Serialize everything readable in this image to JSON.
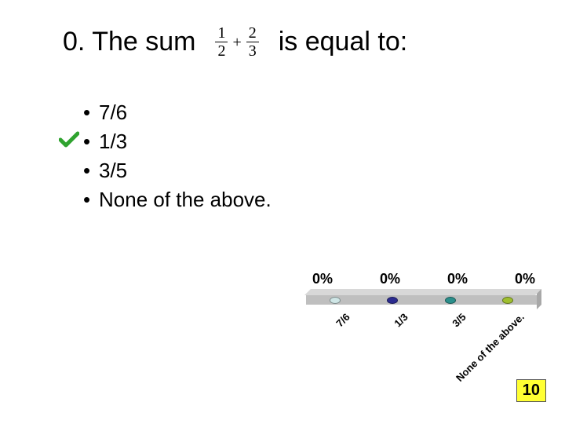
{
  "title": {
    "before": "0. The sum",
    "after": "is equal to:",
    "frac1_num": "1",
    "frac1_den": "2",
    "plus": "+",
    "frac2_num": "2",
    "frac2_den": "3"
  },
  "options": {
    "bullet": "•",
    "items": [
      {
        "text": "7/6",
        "correct": false
      },
      {
        "text": "1/3",
        "correct": true
      },
      {
        "text": "3/5",
        "correct": false
      },
      {
        "text": "None of the above.",
        "correct": false
      }
    ],
    "check_color": "#2fa32f"
  },
  "chart": {
    "type": "bar",
    "percent_label": "0%",
    "labels": [
      "7/6",
      "1/3",
      "3/5",
      "None of the above."
    ],
    "dot_colors": [
      "#cfe6e6",
      "#2b2b8f",
      "#2b8f8b",
      "#9fbf2f"
    ],
    "base_top": "#d8d8d8",
    "base_front": "#bfbfbf",
    "base_side": "#a8a8a8",
    "label_fontsize": 13,
    "pct_fontsize": 18
  },
  "countdown": {
    "value": "10",
    "bg": "#ffff33",
    "border": "#555555"
  }
}
